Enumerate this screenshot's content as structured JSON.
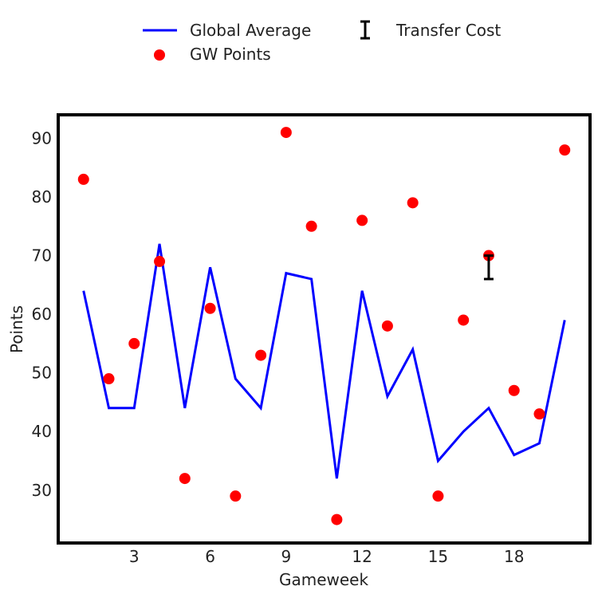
{
  "chart_data": {
    "type": "line",
    "xlabel": "Gameweek",
    "ylabel": "Points",
    "x": [
      1,
      2,
      3,
      4,
      5,
      6,
      7,
      8,
      9,
      10,
      11,
      12,
      13,
      14,
      15,
      16,
      17,
      18,
      19,
      20
    ],
    "xlim": [
      0,
      21
    ],
    "ylim": [
      21,
      94
    ],
    "xticks": [
      3,
      6,
      9,
      12,
      15,
      18
    ],
    "yticks": [
      30,
      40,
      50,
      60,
      70,
      80,
      90
    ],
    "grid": false,
    "legend_position": "top",
    "series": [
      {
        "name": "Global Average",
        "kind": "line",
        "color": "#0000ff",
        "values": [
          64,
          44,
          44,
          72,
          44,
          68,
          49,
          44,
          67,
          66,
          32,
          64,
          46,
          54,
          35,
          40,
          44,
          36,
          38,
          59
        ]
      },
      {
        "name": "GW Points",
        "kind": "scatter",
        "color": "#ff0000",
        "values": [
          83,
          49,
          55,
          69,
          32,
          61,
          29,
          53,
          91,
          75,
          25,
          76,
          58,
          79,
          29,
          59,
          70,
          47,
          43,
          88
        ]
      },
      {
        "name": "Transfer Cost",
        "kind": "errorbar",
        "color": "#000000",
        "points": [
          {
            "x": 17,
            "y_low": 66,
            "y_high": 70
          }
        ]
      }
    ]
  }
}
